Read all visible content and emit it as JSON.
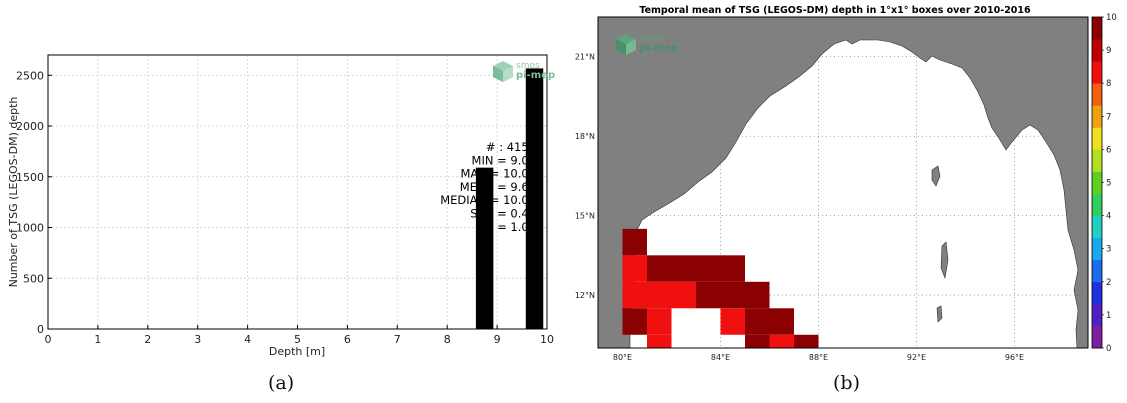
{
  "histogram": {
    "chart_data": {
      "type": "bar",
      "xlabel": "Depth [m]",
      "ylabel": "Number of TSG (LEGOS-DM) depth",
      "xlim": [
        0,
        10
      ],
      "ylim": [
        0,
        2700
      ],
      "xticks": [
        0,
        1,
        2,
        3,
        4,
        5,
        6,
        7,
        8,
        9,
        10
      ],
      "yticks": [
        0,
        500,
        1000,
        1500,
        2000,
        2500
      ],
      "grid": true,
      "bars": [
        {
          "x": 8.75,
          "width": 0.35,
          "value": 1590
        },
        {
          "x": 9.75,
          "width": 0.35,
          "value": 2568
        }
      ]
    },
    "stats": [
      "# : 4158",
      "MIN = 9.00",
      "MAX = 10.00",
      "MEAN = 9.62",
      "MEDIAN = 10.00",
      "STD = 0.49",
      "IQ = 1.00"
    ],
    "logo": {
      "line1": "smos",
      "line2": "pi-mep"
    },
    "caption": "(a)"
  },
  "map": {
    "chart_data": {
      "type": "heatmap",
      "title": "Temporal mean of TSG (LEGOS-DM) depth in 1°x1° boxes over 2010-2016",
      "lon_range": [
        79,
        99
      ],
      "lat_range": [
        10,
        22.5
      ],
      "lon_ticks": [
        "80°E",
        "84°E",
        "88°E",
        "92°E",
        "96°E"
      ],
      "lat_ticks": [
        "21°N",
        "18°N",
        "15°N",
        "12°N"
      ],
      "colorbar": {
        "min": 0,
        "max": 10,
        "ticks": [
          "0",
          "1",
          "2",
          "3",
          "4",
          "5",
          "6",
          "7",
          "8",
          "9",
          "10"
        ]
      },
      "cells": [
        {
          "lon": 80.5,
          "lat": 14.0,
          "value": 10
        },
        {
          "lon": 80.5,
          "lat": 13.0,
          "value": 9
        },
        {
          "lon": 80.5,
          "lat": 12.0,
          "value": 9
        },
        {
          "lon": 80.5,
          "lat": 11.0,
          "value": 10
        },
        {
          "lon": 81.5,
          "lat": 13.0,
          "value": 10
        },
        {
          "lon": 81.5,
          "lat": 12.0,
          "value": 9
        },
        {
          "lon": 81.5,
          "lat": 11.0,
          "value": 9
        },
        {
          "lon": 81.5,
          "lat": 10.0,
          "value": 9
        },
        {
          "lon": 82.5,
          "lat": 13.0,
          "value": 10
        },
        {
          "lon": 82.5,
          "lat": 12.0,
          "value": 9
        },
        {
          "lon": 83.5,
          "lat": 13.0,
          "value": 10
        },
        {
          "lon": 83.5,
          "lat": 12.0,
          "value": 10
        },
        {
          "lon": 84.5,
          "lat": 13.0,
          "value": 10
        },
        {
          "lon": 84.5,
          "lat": 12.0,
          "value": 10
        },
        {
          "lon": 84.5,
          "lat": 11.0,
          "value": 9
        },
        {
          "lon": 85.5,
          "lat": 12.0,
          "value": 10
        },
        {
          "lon": 85.5,
          "lat": 11.0,
          "value": 10
        },
        {
          "lon": 85.5,
          "lat": 10.0,
          "value": 10
        },
        {
          "lon": 86.5,
          "lat": 11.0,
          "value": 10
        },
        {
          "lon": 86.5,
          "lat": 10.0,
          "value": 9
        },
        {
          "lon": 87.5,
          "lat": 10.0,
          "value": 10
        }
      ]
    },
    "colors": {
      "land": "#808080",
      "sea": "#ffffff",
      "scale": [
        "#7f1fa0",
        "#5020c0",
        "#2030e0",
        "#1c6cf0",
        "#18a8f0",
        "#20d0c0",
        "#30d060",
        "#60d020",
        "#b0e020",
        "#f0e020",
        "#f0a010",
        "#f06010",
        "#f01010",
        "#c00000",
        "#8b0000"
      ]
    },
    "logo": {
      "line1": "smos",
      "line2": "pi-mep"
    },
    "caption": "(b)"
  }
}
